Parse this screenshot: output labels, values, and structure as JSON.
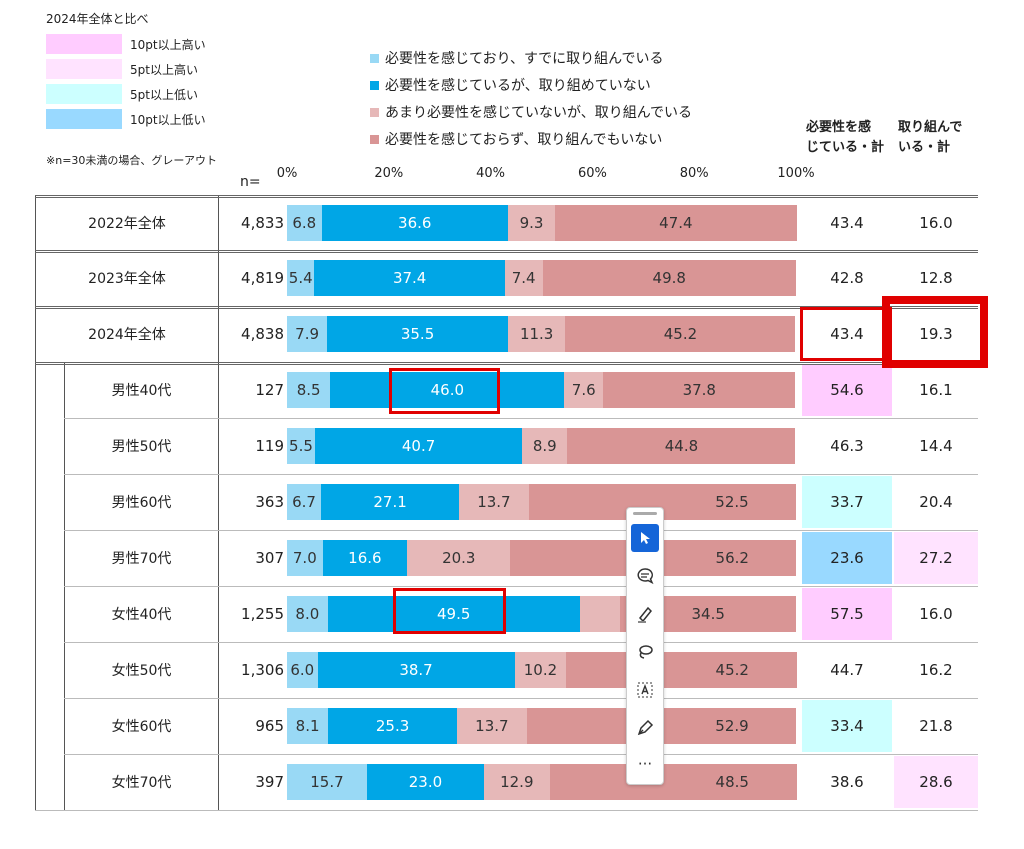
{
  "chart_data": {
    "type": "bar",
    "stacked": true,
    "orientation": "horizontal",
    "compare_legend": {
      "title": "2024年全体と比べ",
      "items": [
        {
          "label": "10pt以上高い",
          "color": "#ffccff"
        },
        {
          "label": "5pt以上高い",
          "color": "#ffe3ff"
        },
        {
          "label": "5pt以上低い",
          "color": "#ccffff"
        },
        {
          "label": "10pt以上低い",
          "color": "#99d9ff"
        }
      ],
      "note": "※n=30未満の場合、グレーアウト"
    },
    "series": [
      {
        "name": "必要性を感じており、すでに取り組んでいる",
        "color": "#99d9f5"
      },
      {
        "name": "必要性を感じているが、取り組めていない",
        "color": "#00a6e6"
      },
      {
        "name": "あまり必要性を感じていないが、取り組んでいる",
        "color": "#e6b8b8"
      },
      {
        "name": "必要性を感じておらず、取り組んでもいない",
        "color": "#d99595"
      }
    ],
    "n_label": "n=",
    "xticks": [
      "0%",
      "20%",
      "40%",
      "60%",
      "80%",
      "100%"
    ],
    "xlim": [
      0,
      100
    ],
    "col_headers": [
      "必要性を感\nじている・計",
      "取り組んで\nいる・計"
    ],
    "rows": [
      {
        "label": "2022年全体",
        "n": "4,833",
        "values": [
          6.8,
          36.6,
          9.3,
          47.4
        ],
        "t1": "43.4",
        "t2": "16.0",
        "h1": "",
        "h2": "",
        "group": "top"
      },
      {
        "label": "2023年全体",
        "n": "4,819",
        "values": [
          5.4,
          37.4,
          7.4,
          49.8
        ],
        "t1": "42.8",
        "t2": "12.8",
        "h1": "",
        "h2": "",
        "group": "top"
      },
      {
        "label": "2024年全体",
        "n": "4,838",
        "values": [
          7.9,
          35.5,
          11.3,
          45.2
        ],
        "t1": "43.4",
        "t2": "19.3",
        "h1": "",
        "h2": "",
        "group": "top"
      },
      {
        "label": "男性40代",
        "n": "127",
        "values": [
          8.5,
          46.0,
          7.6,
          37.8
        ],
        "t1": "54.6",
        "t2": "16.1",
        "h1": "#ffccff",
        "h2": "",
        "group": "sub"
      },
      {
        "label": "男性50代",
        "n": "119",
        "values": [
          5.5,
          40.7,
          8.9,
          44.8
        ],
        "t1": "46.3",
        "t2": "14.4",
        "h1": "",
        "h2": "",
        "group": "sub"
      },
      {
        "label": "男性60代",
        "n": "363",
        "values": [
          6.7,
          27.1,
          13.7,
          52.5
        ],
        "t1": "33.7",
        "t2": "20.4",
        "h1": "#ccffff",
        "h2": "",
        "group": "sub"
      },
      {
        "label": "男性70代",
        "n": "307",
        "values": [
          7.0,
          16.6,
          20.3,
          56.2
        ],
        "t1": "23.6",
        "t2": "27.2",
        "h1": "#99d9ff",
        "h2": "#ffe3ff",
        "group": "sub"
      },
      {
        "label": "女性40代",
        "n": "1,255",
        "values": [
          8.0,
          49.5,
          8.0,
          34.5
        ],
        "t1": "57.5",
        "t2": "16.0",
        "h1": "#ffccff",
        "h2": "",
        "group": "sub"
      },
      {
        "label": "女性50代",
        "n": "1,306",
        "values": [
          6.0,
          38.7,
          10.2,
          45.2
        ],
        "t1": "44.7",
        "t2": "16.2",
        "h1": "",
        "h2": "",
        "group": "sub"
      },
      {
        "label": "女性60代",
        "n": "965",
        "values": [
          8.1,
          25.3,
          13.7,
          52.9
        ],
        "t1": "33.4",
        "t2": "21.8",
        "h1": "#ccffff",
        "h2": "",
        "group": "sub"
      },
      {
        "label": "女性70代",
        "n": "397",
        "values": [
          15.7,
          23.0,
          12.9,
          48.5
        ],
        "t1": "38.6",
        "t2": "28.6",
        "h1": "",
        "h2": "#ffe3ff",
        "group": "sub"
      }
    ]
  },
  "toolbar": {
    "more": "···"
  }
}
